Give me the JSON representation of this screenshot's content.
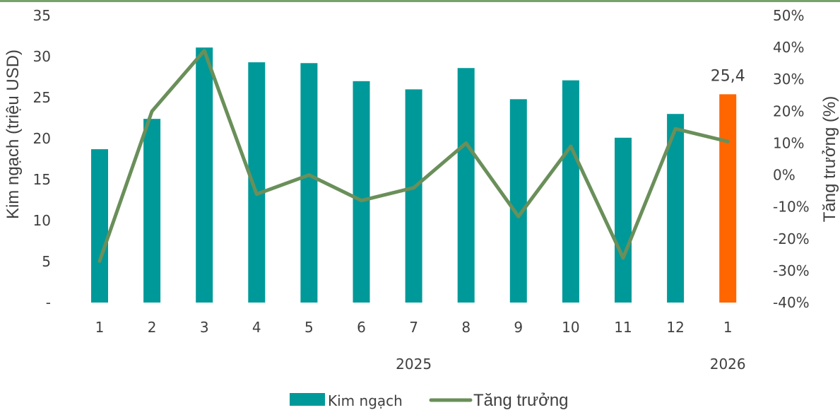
{
  "chart_data": {
    "type": "bar",
    "categories": [
      "1",
      "2",
      "3",
      "4",
      "5",
      "6",
      "7",
      "8",
      "9",
      "10",
      "11",
      "12",
      "1"
    ],
    "year_groups": [
      {
        "label": "2025",
        "from": 0,
        "to": 11
      },
      {
        "label": "2026",
        "from": 12,
        "to": 12
      }
    ],
    "series": [
      {
        "name": "Kim ngạch",
        "type": "bar",
        "axis": "left",
        "values": [
          18.7,
          22.4,
          31.1,
          29.3,
          29.2,
          27.0,
          26.0,
          28.6,
          24.8,
          27.1,
          20.1,
          23.0,
          25.4
        ],
        "color": "#009999",
        "highlight_color": "#ff6600",
        "highlight_index": 12
      },
      {
        "name": "Tăng trưởng",
        "type": "line",
        "axis": "right",
        "values": [
          -27,
          20,
          39,
          -6,
          0,
          -8,
          -4,
          10,
          -13,
          9,
          -26,
          14.5,
          10.5
        ],
        "color": "#6a8f5a"
      }
    ],
    "data_labels": [
      {
        "index": 12,
        "text": "25,4"
      }
    ],
    "ylabel": "Kim ngạch (triệu USD)",
    "ylabel_right": "Tăng trưởng (%)",
    "ylim": [
      0,
      35
    ],
    "y2lim": [
      -40,
      50
    ],
    "yticks": [
      "-",
      "5",
      "10",
      "15",
      "20",
      "25",
      "30",
      "35"
    ],
    "y2ticks": [
      "-40%",
      "-30%",
      "-20%",
      "-10%",
      "0%",
      "10%",
      "20%",
      "30%",
      "40%",
      "50%"
    ],
    "grid": false,
    "legend_position": "bottom"
  }
}
